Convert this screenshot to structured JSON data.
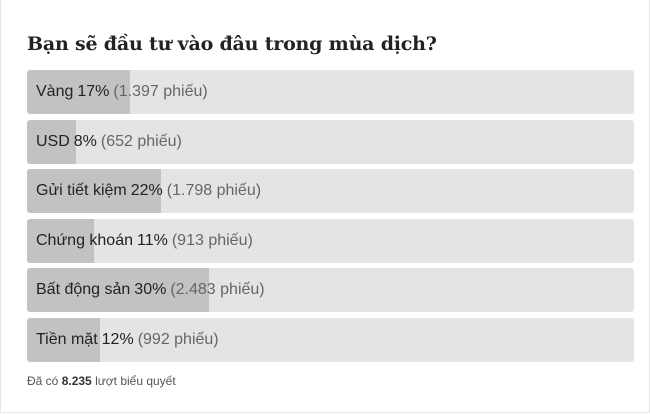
{
  "poll": {
    "title": "Bạn sẽ đầu tư vào đâu trong mùa dịch?",
    "options": [
      {
        "label": "Vàng",
        "percent": "17%",
        "votes": "(1.397 phiếu)",
        "fill_fraction": 0.17
      },
      {
        "label": "USD",
        "percent": "8%",
        "votes": "(652 phiếu)",
        "fill_fraction": 0.08
      },
      {
        "label": "Gửi tiết kiệm",
        "percent": "22%",
        "votes": "(1.798 phiếu)",
        "fill_fraction": 0.22
      },
      {
        "label": "Chứng khoán",
        "percent": "11%",
        "votes": "(913 phiếu)",
        "fill_fraction": 0.11
      },
      {
        "label": "Bất động sản",
        "percent": "30%",
        "votes": "(2.483 phiếu)",
        "fill_fraction": 0.3
      },
      {
        "label": "Tiền mặt",
        "percent": "12%",
        "votes": "(992 phiếu)",
        "fill_fraction": 0.12
      }
    ],
    "footer": {
      "prefix": "Đã có",
      "total": "8.235",
      "suffix": "lượt biểu quyết"
    }
  },
  "colors": {
    "bar_track": "#e4e4e4",
    "bar_fill": "#c2c2c2",
    "text": "#222222",
    "muted_text": "#666666"
  }
}
